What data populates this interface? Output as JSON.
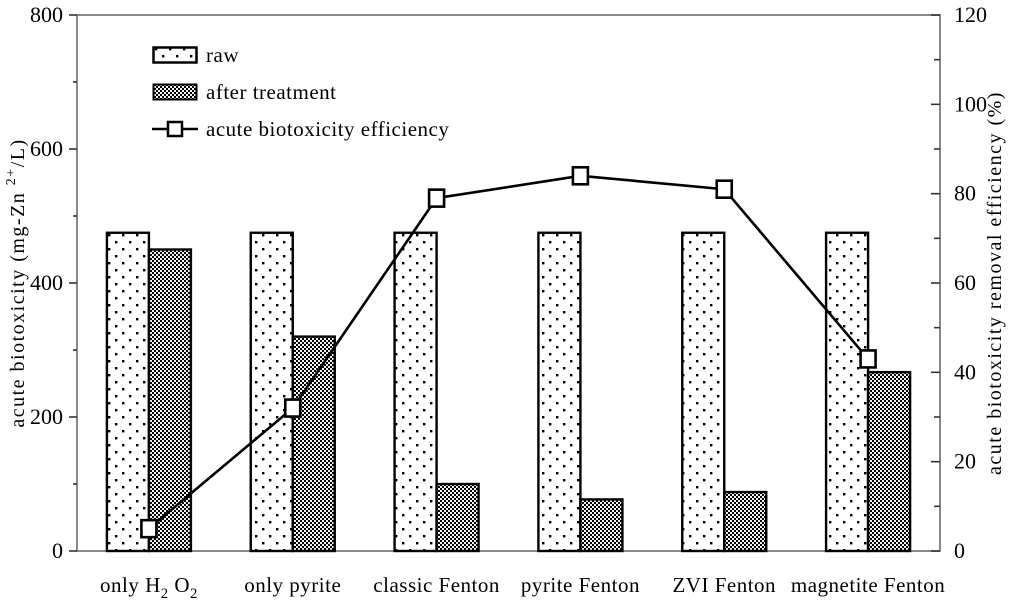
{
  "chart_data": {
    "type": "bar",
    "title": "",
    "categories_plain": [
      "only H2 O2",
      "only pyrite",
      "classic Fenton",
      "pyrite Fenton",
      "ZVI Fenton",
      "magnetite Fenton"
    ],
    "categories_rich": [
      [
        [
          "only H",
          ""
        ],
        [
          "2",
          "sub"
        ],
        [
          " O",
          ""
        ],
        [
          "2",
          "sub"
        ]
      ],
      [
        [
          "only pyrite",
          ""
        ]
      ],
      [
        [
          "classic Fenton",
          ""
        ]
      ],
      [
        [
          "pyrite Fenton",
          ""
        ]
      ],
      [
        [
          "ZVI Fenton",
          ""
        ]
      ],
      [
        [
          "magnetite Fenton",
          ""
        ]
      ]
    ],
    "series": [
      {
        "name": "raw",
        "type": "bar",
        "axis": "left",
        "pattern": "dots",
        "values": [
          475,
          475,
          475,
          475,
          475,
          475
        ]
      },
      {
        "name": "after treatment",
        "type": "bar",
        "axis": "left",
        "pattern": "checker",
        "values": [
          450,
          320,
          100,
          77,
          88,
          267
        ]
      },
      {
        "name": "acute biotoxicity efficiency",
        "type": "line",
        "axis": "right",
        "marker": "open-square",
        "values": [
          5,
          32,
          79,
          84,
          81,
          43
        ]
      }
    ],
    "left_axis": {
      "label_plain": "acute biotoxicity (mg-Zn 2+/L)",
      "label_rich": [
        [
          "acute biotoxicity (mg-Zn ",
          ""
        ],
        [
          "2+",
          "sup"
        ],
        [
          "/L)",
          ""
        ]
      ],
      "min": 0,
      "max": 800,
      "major_step": 200,
      "minor_step": 100,
      "tick_labels": [
        "0",
        "200",
        "400",
        "600",
        "800"
      ]
    },
    "right_axis": {
      "label_plain": "acute biotoxicity removal efficiency (%)",
      "label_rich": [
        [
          "acute biotoxicity removal efficiency (%)",
          ""
        ]
      ],
      "min": 0,
      "max": 120,
      "major_step": 20,
      "minor_step": 10,
      "tick_labels": [
        "0",
        "20",
        "40",
        "60",
        "80",
        "100",
        "120"
      ]
    },
    "legend": [
      {
        "label": "raw",
        "swatch": "dots-box"
      },
      {
        "label": "after treatment",
        "swatch": "checker-box"
      },
      {
        "label": "acute biotoxicity efficiency",
        "swatch": "line-square-marker"
      }
    ],
    "layout": {
      "grid": "off",
      "legend_position": "top-left-inside"
    },
    "colors": {
      "bar_stroke": "#000000",
      "line": "#000000",
      "frame": "#6b6b6b",
      "tick": "#333333",
      "text": "#000000",
      "background": "#ffffff",
      "marker_fill": "#ffffff"
    }
  }
}
